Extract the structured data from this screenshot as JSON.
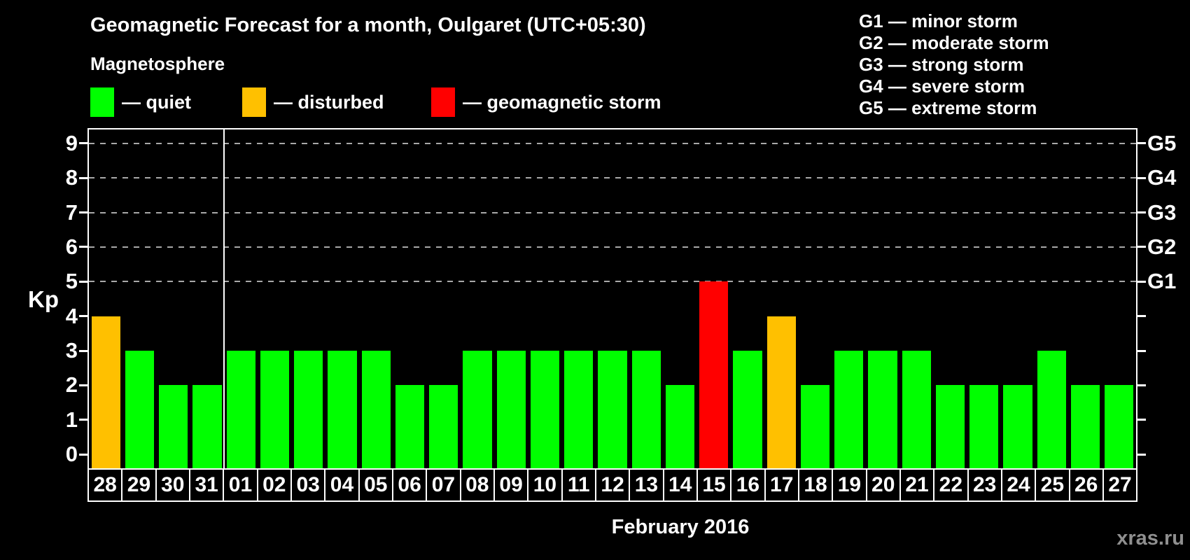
{
  "header": {
    "title": "Geomagnetic Forecast for a month, Oulgaret (UTC+05:30)"
  },
  "legend": {
    "heading": "Magnetosphere",
    "items": [
      {
        "key": "quiet",
        "label": "— quiet",
        "color": "#00ff00"
      },
      {
        "key": "disturbed",
        "label": "— disturbed",
        "color": "#ffc000"
      },
      {
        "key": "storm",
        "label": "— geomagnetic storm",
        "color": "#ff0000"
      }
    ]
  },
  "storm_scale": {
    "items": [
      "G1 — minor storm",
      "G2 — moderate storm",
      "G3 — strong storm",
      "G4 — severe storm",
      "G5 — extreme storm"
    ]
  },
  "axes": {
    "y_label": "Kp",
    "y_ticks": [
      0,
      1,
      2,
      3,
      4,
      5,
      6,
      7,
      8,
      9
    ],
    "right_scale": [
      {
        "kp": 5,
        "label": "G1"
      },
      {
        "kp": 6,
        "label": "G2"
      },
      {
        "kp": 7,
        "label": "G3"
      },
      {
        "kp": 8,
        "label": "G4"
      },
      {
        "kp": 9,
        "label": "G5"
      }
    ]
  },
  "footer": {
    "watermark": "xras.ru"
  },
  "chart_data": {
    "type": "bar",
    "title": "Geomagnetic Forecast for a month, Oulgaret (UTC+05:30)",
    "xlabel": "February 2016",
    "ylabel": "Kp",
    "ylim": [
      -0.4,
      9.4
    ],
    "gridlines_at_kp": [
      5,
      6,
      7,
      8,
      9
    ],
    "grid": "dashed-horizontal-only",
    "legend_position": "top",
    "month_separator_index": 4,
    "categories": [
      "28",
      "29",
      "30",
      "31",
      "01",
      "02",
      "03",
      "04",
      "05",
      "06",
      "07",
      "08",
      "09",
      "10",
      "11",
      "12",
      "13",
      "14",
      "15",
      "16",
      "17",
      "18",
      "19",
      "20",
      "21",
      "22",
      "23",
      "24",
      "25",
      "26",
      "27"
    ],
    "values": [
      4,
      3,
      2,
      2,
      3,
      3,
      3,
      3,
      3,
      2,
      2,
      3,
      3,
      3,
      3,
      3,
      3,
      2,
      5,
      3,
      4,
      2,
      3,
      3,
      3,
      2,
      2,
      2,
      3,
      2,
      2
    ],
    "statuses": [
      "disturbed",
      "quiet",
      "quiet",
      "quiet",
      "quiet",
      "quiet",
      "quiet",
      "quiet",
      "quiet",
      "quiet",
      "quiet",
      "quiet",
      "quiet",
      "quiet",
      "quiet",
      "quiet",
      "quiet",
      "quiet",
      "storm",
      "quiet",
      "disturbed",
      "quiet",
      "quiet",
      "quiet",
      "quiet",
      "quiet",
      "quiet",
      "quiet",
      "quiet",
      "quiet",
      "quiet"
    ],
    "colors": {
      "quiet": "#00ff00",
      "disturbed": "#ffc000",
      "storm": "#ff0000"
    }
  }
}
